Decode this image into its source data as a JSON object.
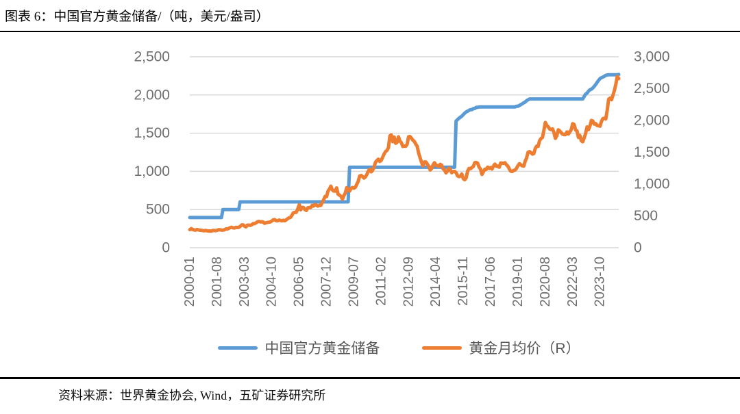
{
  "title": "图表 6：中国官方黄金储备/（吨，美元/盎司）",
  "source": "资料来源：世界黄金协会, Wind，五矿证券研究所",
  "legend": [
    {
      "label": "中国官方黄金储备",
      "color": "#5B9BD5"
    },
    {
      "label": "黄金月均价（R）",
      "color": "#ED7D31"
    }
  ],
  "colors": {
    "reserves_line": "#5B9BD5",
    "price_line": "#ED7D31",
    "gridline": "#D9D9D9",
    "axis_text": "#6e6e6e"
  },
  "chart_data": {
    "type": "line",
    "title": "中国官方黄金储备/（吨，美元/盎司）",
    "x_start": "2000-01",
    "x_end": "2024-11",
    "x_tick_interval_months": 19,
    "x_tick_labels": [
      "2000-01",
      "2001-08",
      "2003-03",
      "2004-10",
      "2006-05",
      "2007-12",
      "2009-07",
      "2011-02",
      "2012-09",
      "2014-04",
      "2015-11",
      "2017-06",
      "2019-01",
      "2020-08",
      "2022-03",
      "2023-10"
    ],
    "left_axis": {
      "min": 0,
      "max": 2500,
      "ticks": [
        "0",
        "500",
        "1,000",
        "1,500",
        "2,000",
        "2,500"
      ]
    },
    "right_axis": {
      "min": 0,
      "max": 3000,
      "ticks": [
        "0",
        "500",
        "1,000",
        "1,500",
        "2,000",
        "2,500",
        "3,000"
      ]
    },
    "grid": true,
    "legend_position": "bottom",
    "gridline_color": "#D9D9D9",
    "series": [
      {
        "key": "reserves",
        "name": "中国官方黄金储备",
        "axis": "left",
        "unit": "吨",
        "color": "#5B9BD5",
        "values": [
          395,
          395,
          395,
          395,
          395,
          395,
          395,
          395,
          395,
          395,
          395,
          395,
          395,
          395,
          395,
          395,
          395,
          395,
          395,
          395,
          395,
          395,
          395,
          500,
          500,
          500,
          500,
          500,
          500,
          500,
          500,
          500,
          500,
          500,
          500,
          600,
          600,
          600,
          600,
          600,
          600,
          600,
          600,
          600,
          600,
          600,
          600,
          600,
          600,
          600,
          600,
          600,
          600,
          600,
          600,
          600,
          600,
          600,
          600,
          600,
          600,
          600,
          600,
          600,
          600,
          600,
          600,
          600,
          600,
          600,
          600,
          600,
          600,
          600,
          600,
          600,
          600,
          600,
          600,
          600,
          600,
          600,
          600,
          600,
          600,
          600,
          600,
          600,
          600,
          600,
          600,
          600,
          600,
          600,
          600,
          600,
          600,
          600,
          600,
          600,
          600,
          600,
          600,
          600,
          600,
          600,
          600,
          600,
          600,
          600,
          600,
          1054,
          1054,
          1054,
          1054,
          1054,
          1054,
          1054,
          1054,
          1054,
          1054,
          1054,
          1054,
          1054,
          1054,
          1054,
          1054,
          1054,
          1054,
          1054,
          1054,
          1054,
          1054,
          1054,
          1054,
          1054,
          1054,
          1054,
          1054,
          1054,
          1054,
          1054,
          1054,
          1054,
          1054,
          1054,
          1054,
          1054,
          1054,
          1054,
          1054,
          1054,
          1054,
          1054,
          1054,
          1054,
          1054,
          1054,
          1054,
          1054,
          1054,
          1054,
          1054,
          1054,
          1054,
          1054,
          1054,
          1054,
          1054,
          1054,
          1054,
          1054,
          1054,
          1054,
          1054,
          1054,
          1054,
          1054,
          1054,
          1054,
          1054,
          1054,
          1054,
          1054,
          1054,
          1658,
          1677,
          1694,
          1709,
          1723,
          1743,
          1762,
          1778,
          1788,
          1798,
          1808,
          1808,
          1823,
          1823,
          1838,
          1838,
          1843,
          1843,
          1843,
          1843,
          1843,
          1843,
          1843,
          1843,
          1843,
          1843,
          1843,
          1843,
          1843,
          1843,
          1843,
          1843,
          1843,
          1843,
          1843,
          1843,
          1843,
          1843,
          1843,
          1843,
          1843,
          1843,
          1852,
          1852,
          1864,
          1874,
          1885,
          1898,
          1908,
          1926,
          1936,
          1948,
          1948,
          1948,
          1948,
          1948,
          1948,
          1948,
          1948,
          1948,
          1948,
          1948,
          1948,
          1948,
          1948,
          1948,
          1948,
          1948,
          1948,
          1948,
          1948,
          1948,
          1948,
          1948,
          1948,
          1948,
          1948,
          1948,
          1948,
          1948,
          1948,
          1948,
          1948,
          1948,
          1948,
          1948,
          1948,
          1948,
          1948,
          1980,
          2011,
          2025,
          2050,
          2068,
          2076,
          2092,
          2113,
          2137,
          2165,
          2192,
          2215,
          2226,
          2235,
          2245,
          2257,
          2262,
          2264,
          2264,
          2264,
          2264,
          2264,
          2264,
          2264,
          2269
        ]
      },
      {
        "key": "gold_price",
        "name": "黄金月均价（R）",
        "axis": "right",
        "unit": "美元/盎司",
        "color": "#ED7D31",
        "values": [
          284,
          300,
          286,
          280,
          275,
          286,
          281,
          274,
          274,
          270,
          266,
          272,
          266,
          262,
          263,
          260,
          272,
          270,
          268,
          272,
          284,
          283,
          276,
          276,
          281,
          295,
          294,
          303,
          314,
          321,
          313,
          310,
          319,
          317,
          319,
          333,
          357,
          359,
          340,
          328,
          355,
          356,
          351,
          360,
          379,
          379,
          390,
          407,
          414,
          405,
          407,
          403,
          383,
          392,
          398,
          401,
          405,
          420,
          439,
          442,
          424,
          423,
          434,
          429,
          422,
          431,
          424,
          438,
          456,
          470,
          477,
          510,
          550,
          555,
          557,
          611,
          675,
          596,
          634,
          632,
          598,
          586,
          628,
          630,
          631,
          665,
          655,
          680,
          667,
          655,
          665,
          665,
          713,
          755,
          806,
          804,
          890,
          922,
          968,
          910,
          889,
          889,
          940,
          839,
          829,
          807,
          761,
          816,
          858,
          943,
          924,
          890,
          928,
          946,
          934,
          950,
          997,
          1043,
          1127,
          1135,
          1118,
          1095,
          1113,
          1149,
          1205,
          1233,
          1193,
          1216,
          1271,
          1342,
          1370,
          1391,
          1356,
          1373,
          1424,
          1473,
          1511,
          1529,
          1572,
          1756,
          1772,
          1666,
          1739,
          1641,
          1656,
          1743,
          1674,
          1650,
          1591,
          1598,
          1594,
          1626,
          1744,
          1747,
          1721,
          1688,
          1671,
          1628,
          1593,
          1487,
          1414,
          1343,
          1286,
          1347,
          1348,
          1316,
          1276,
          1221,
          1244,
          1301,
          1336,
          1298,
          1288,
          1279,
          1311,
          1296,
          1238,
          1222,
          1176,
          1201,
          1251,
          1227,
          1178,
          1198,
          1199,
          1181,
          1130,
          1117,
          1125,
          1159,
          1086,
          1068,
          1097,
          1200,
          1246,
          1242,
          1260,
          1276,
          1337,
          1340,
          1327,
          1266,
          1236,
          1152,
          1192,
          1234,
          1231,
          1266,
          1246,
          1260,
          1237,
          1283,
          1314,
          1280,
          1282,
          1264,
          1331,
          1330,
          1325,
          1335,
          1303,
          1282,
          1238,
          1202,
          1198,
          1215,
          1221,
          1250,
          1291,
          1320,
          1301,
          1286,
          1284,
          1359,
          1413,
          1500,
          1511,
          1495,
          1471,
          1479,
          1560,
          1597,
          1592,
          1683,
          1716,
          1732,
          1843,
          1969,
          1922,
          1900,
          1866,
          1856,
          1867,
          1808,
          1718,
          1762,
          1853,
          1835,
          1807,
          1784,
          1777,
          1777,
          1820,
          1787,
          1816,
          1856,
          1948,
          1937,
          1850,
          1836,
          1732,
          1765,
          1681,
          1664,
          1726,
          1798,
          1898,
          1855,
          1913,
          2000,
          1991,
          1943,
          1951,
          1919,
          1916,
          1910,
          1984,
          2030,
          2034,
          2023,
          2160,
          2334,
          2351,
          2326,
          2398,
          2470,
          2570,
          2690,
          2657
        ]
      }
    ]
  }
}
